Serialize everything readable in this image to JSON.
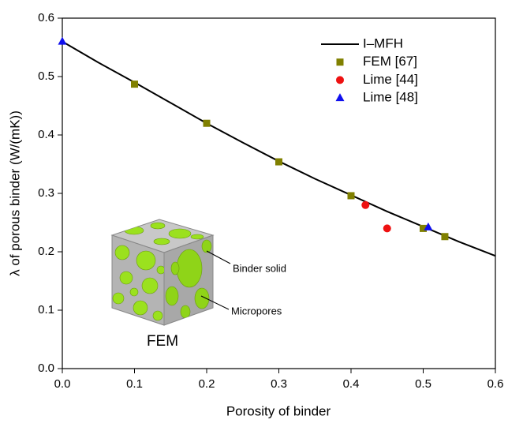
{
  "chart_data": {
    "type": "scatter",
    "xlabel": "Porosity of binder",
    "ylabel": "λ of porous binder (W/(mK))",
    "xlim": [
      0,
      0.6
    ],
    "ylim": [
      0,
      0.6
    ],
    "xticks": [
      {
        "value": 0,
        "label": "0.0"
      },
      0.1,
      0.2,
      0.3,
      0.4,
      0.5,
      0.6
    ],
    "yticks": [
      {
        "value": 0,
        "label": "0.0"
      },
      0.1,
      0.2,
      0.3,
      0.4,
      0.5,
      0.6
    ],
    "legend": "upper right",
    "series": [
      {
        "name": "I–MFH",
        "color": "#000000",
        "mode": "line",
        "x": [
          0,
          0.05,
          0.1,
          0.15,
          0.2,
          0.25,
          0.3,
          0.35,
          0.4,
          0.45,
          0.5,
          0.55,
          0.6
        ],
        "values": [
          0.56,
          0.524,
          0.49,
          0.455,
          0.42,
          0.387,
          0.355,
          0.325,
          0.297,
          0.269,
          0.243,
          0.217,
          0.193
        ]
      },
      {
        "name": "FEM [67]",
        "color": "#808000",
        "mode": "square",
        "x": [
          0.1,
          0.2,
          0.3,
          0.4,
          0.5,
          0.53
        ],
        "values": [
          0.487,
          0.42,
          0.354,
          0.296,
          0.24,
          0.226
        ]
      },
      {
        "name": "Lime [44]",
        "color": "#ee1111",
        "mode": "circle",
        "x": [
          0.42,
          0.45
        ],
        "values": [
          0.28,
          0.24
        ]
      },
      {
        "name": "Lime [48]",
        "color": "#1010ee",
        "mode": "triangle",
        "x": [
          0,
          0.507
        ],
        "values": [
          0.56,
          0.242
        ]
      }
    ],
    "annotations": [
      "Binder solid",
      "Micropores",
      "FEM"
    ]
  }
}
